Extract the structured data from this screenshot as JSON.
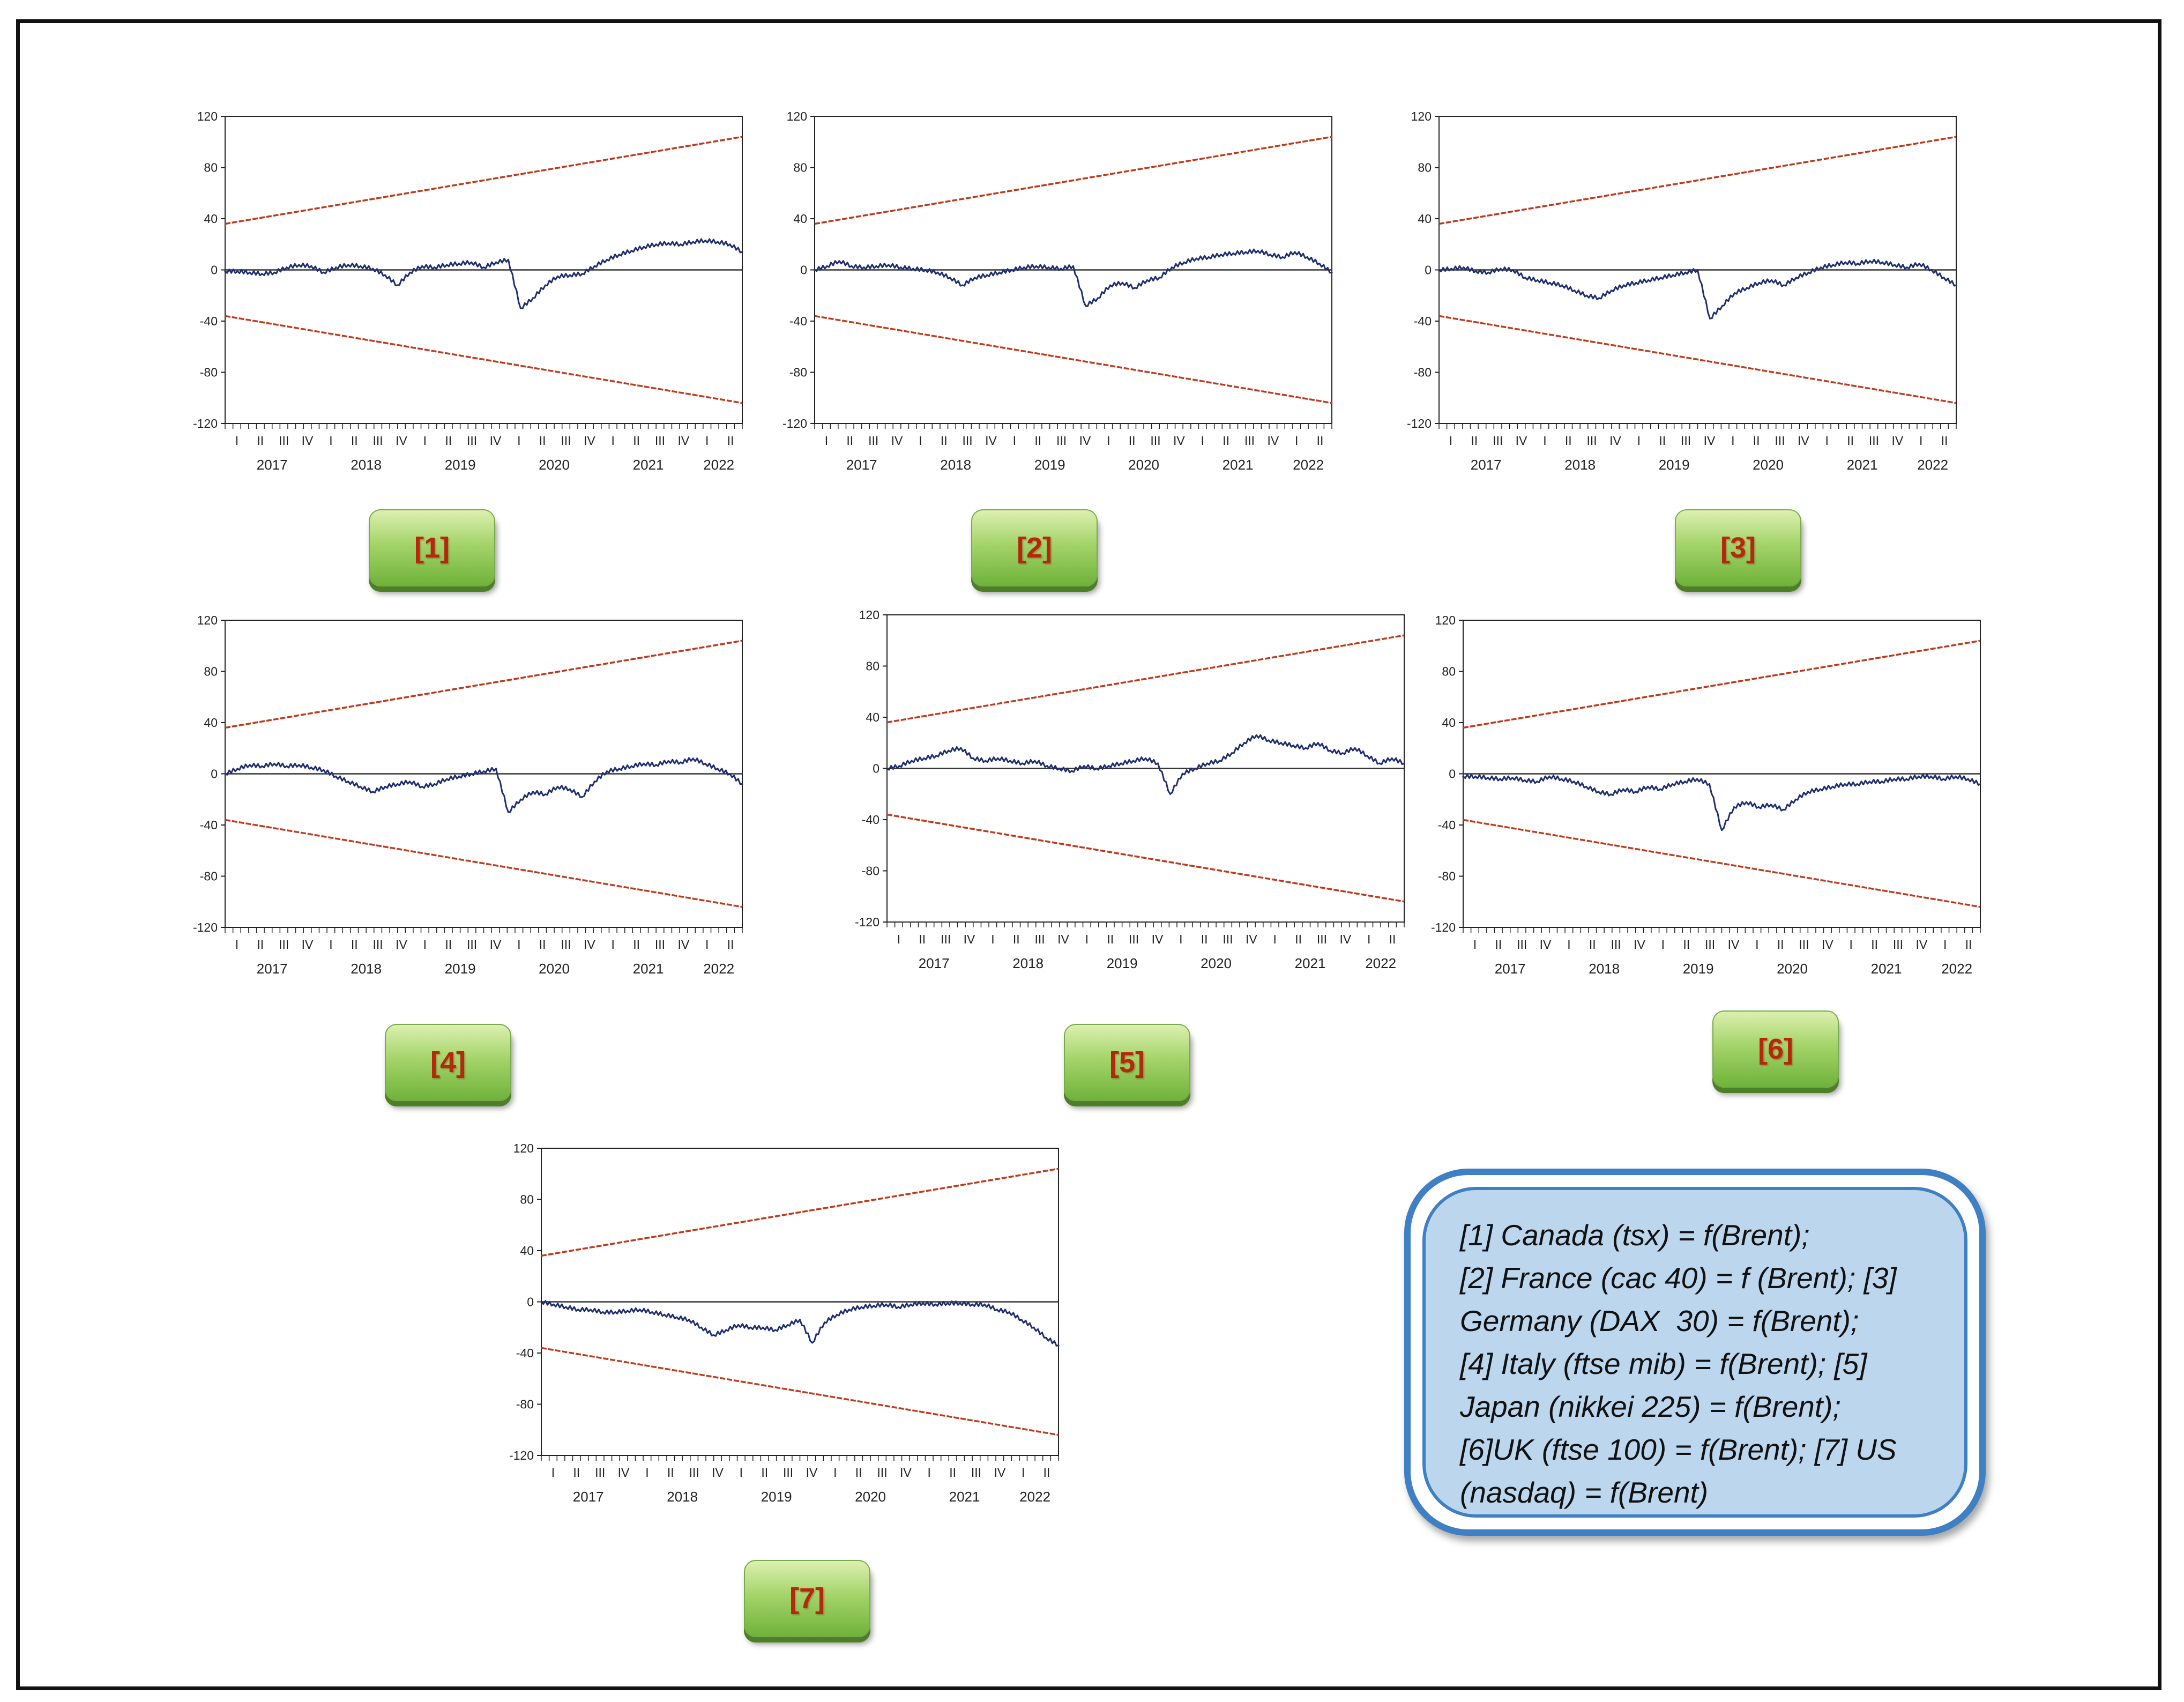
{
  "chart_data": [
    {
      "type": "line",
      "label": "[1]",
      "ylim": [
        -120,
        120
      ],
      "yticks": [
        "120",
        "80",
        "40",
        "0",
        "-40",
        "-80",
        "-120"
      ],
      "quarters": [
        "I",
        "II",
        "III",
        "IV"
      ],
      "years": [
        "2017",
        "2018",
        "2019",
        "2020",
        "2021",
        "2022"
      ],
      "x_range": [
        "2017-01",
        "2022-06"
      ],
      "series": [
        {
          "values": [
            -1,
            -1,
            -2,
            -3,
            -2,
            2,
            4,
            3,
            -2,
            2,
            4,
            3,
            1,
            -4,
            -12,
            -2,
            3,
            2,
            4,
            5,
            6,
            2,
            6,
            8,
            -30,
            -22,
            -12,
            -5,
            -4,
            -3,
            3,
            8,
            12,
            15,
            18,
            20,
            21,
            20,
            22,
            23,
            22,
            20,
            14
          ]
        },
        {
          "values": [
            36,
            104
          ]
        },
        {
          "values": [
            -36,
            -104
          ]
        }
      ]
    },
    {
      "type": "line",
      "label": "[2]",
      "ylim": [
        -120,
        120
      ],
      "yticks": [
        "120",
        "80",
        "40",
        "0",
        "-40",
        "-80",
        "-120"
      ],
      "quarters": [
        "I",
        "II",
        "III",
        "IV"
      ],
      "years": [
        "2017",
        "2018",
        "2019",
        "2020",
        "2021",
        "2022"
      ],
      "x_range": [
        "2017-01",
        "2022-06"
      ],
      "series": [
        {
          "values": [
            0,
            3,
            7,
            3,
            2,
            3,
            4,
            2,
            1,
            0,
            -2,
            -6,
            -12,
            -6,
            -4,
            -2,
            0,
            2,
            3,
            2,
            1,
            3,
            -28,
            -22,
            -12,
            -10,
            -14,
            -8,
            -6,
            2,
            6,
            9,
            10,
            12,
            13,
            14,
            15,
            12,
            10,
            14,
            10,
            5,
            -2
          ]
        },
        {
          "values": [
            36,
            104
          ]
        },
        {
          "values": [
            -36,
            -104
          ]
        }
      ]
    },
    {
      "type": "line",
      "label": "[3]",
      "ylim": [
        -120,
        120
      ],
      "yticks": [
        "120",
        "80",
        "40",
        "0",
        "-40",
        "-80",
        "-120"
      ],
      "quarters": [
        "I",
        "II",
        "III",
        "IV"
      ],
      "years": [
        "2017",
        "2018",
        "2019",
        "2020",
        "2021",
        "2022"
      ],
      "x_range": [
        "2017-01",
        "2022-06"
      ],
      "series": [
        {
          "values": [
            0,
            1,
            2,
            -1,
            -2,
            1,
            0,
            -6,
            -8,
            -10,
            -12,
            -16,
            -20,
            -22,
            -16,
            -12,
            -10,
            -8,
            -6,
            -4,
            -2,
            0,
            -38,
            -28,
            -18,
            -14,
            -10,
            -8,
            -12,
            -6,
            -2,
            2,
            4,
            6,
            5,
            7,
            6,
            4,
            2,
            5,
            0,
            -6,
            -12
          ]
        },
        {
          "values": [
            36,
            104
          ]
        },
        {
          "values": [
            -36,
            -104
          ]
        }
      ]
    },
    {
      "type": "line",
      "label": "[4]",
      "ylim": [
        -120,
        120
      ],
      "yticks": [
        "120",
        "80",
        "40",
        "0",
        "-40",
        "-80",
        "-120"
      ],
      "quarters": [
        "I",
        "II",
        "III",
        "IV"
      ],
      "years": [
        "2017",
        "2018",
        "2019",
        "2020",
        "2021",
        "2022"
      ],
      "x_range": [
        "2017-01",
        "2022-06"
      ],
      "series": [
        {
          "values": [
            0,
            4,
            7,
            6,
            8,
            6,
            7,
            5,
            3,
            -2,
            -6,
            -10,
            -14,
            -10,
            -8,
            -6,
            -10,
            -8,
            -4,
            -2,
            0,
            2,
            4,
            -30,
            -20,
            -14,
            -16,
            -10,
            -12,
            -18,
            -6,
            2,
            4,
            6,
            8,
            7,
            10,
            9,
            12,
            8,
            4,
            0,
            -8
          ]
        },
        {
          "values": [
            36,
            104
          ]
        },
        {
          "values": [
            -36,
            -104
          ]
        }
      ]
    },
    {
      "type": "line",
      "label": "[5]",
      "ylim": [
        -120,
        120
      ],
      "yticks": [
        "120",
        "80",
        "40",
        "0",
        "-40",
        "-80",
        "-120"
      ],
      "quarters": [
        "I",
        "II",
        "III",
        "IV"
      ],
      "years": [
        "2017",
        "2018",
        "2019",
        "2020",
        "2021",
        "2022"
      ],
      "x_range": [
        "2017-01",
        "2022-06"
      ],
      "series": [
        {
          "values": [
            0,
            2,
            6,
            8,
            10,
            14,
            16,
            8,
            6,
            8,
            6,
            4,
            6,
            2,
            0,
            -2,
            2,
            0,
            2,
            4,
            6,
            8,
            4,
            -20,
            -4,
            0,
            4,
            6,
            12,
            20,
            26,
            22,
            20,
            18,
            16,
            20,
            14,
            12,
            16,
            10,
            4,
            8,
            4
          ]
        },
        {
          "values": [
            36,
            104
          ]
        },
        {
          "values": [
            -36,
            -104
          ]
        }
      ]
    },
    {
      "type": "line",
      "label": "[6]",
      "ylim": [
        -120,
        120
      ],
      "yticks": [
        "120",
        "80",
        "40",
        "0",
        "-40",
        "-80",
        "-120"
      ],
      "quarters": [
        "I",
        "II",
        "III",
        "IV"
      ],
      "years": [
        "2017",
        "2018",
        "2019",
        "2020",
        "2021",
        "2022"
      ],
      "x_range": [
        "2017-01",
        "2022-06"
      ],
      "series": [
        {
          "values": [
            -2,
            -2,
            -3,
            -4,
            -3,
            -5,
            -6,
            -2,
            -4,
            -6,
            -10,
            -14,
            -16,
            -12,
            -14,
            -10,
            -12,
            -8,
            -6,
            -4,
            -8,
            -44,
            -26,
            -22,
            -26,
            -24,
            -28,
            -20,
            -14,
            -12,
            -10,
            -8,
            -8,
            -6,
            -6,
            -4,
            -4,
            -2,
            -2,
            -4,
            -2,
            -4,
            -8
          ]
        },
        {
          "values": [
            36,
            104
          ]
        },
        {
          "values": [
            -36,
            -104
          ]
        }
      ]
    },
    {
      "type": "line",
      "label": "[7]",
      "ylim": [
        -120,
        120
      ],
      "yticks": [
        "120",
        "80",
        "40",
        "0",
        "-40",
        "-80",
        "-120"
      ],
      "quarters": [
        "I",
        "II",
        "III",
        "IV"
      ],
      "years": [
        "2017",
        "2018",
        "2019",
        "2020",
        "2021",
        "2022"
      ],
      "x_range": [
        "2017-01",
        "2022-06"
      ],
      "series": [
        {
          "values": [
            0,
            -2,
            -4,
            -6,
            -6,
            -8,
            -8,
            -7,
            -6,
            -8,
            -10,
            -12,
            -14,
            -20,
            -26,
            -22,
            -18,
            -20,
            -20,
            -22,
            -18,
            -14,
            -32,
            -16,
            -10,
            -6,
            -4,
            -3,
            -2,
            -4,
            -2,
            -1,
            -2,
            -1,
            -1,
            -2,
            -2,
            -6,
            -8,
            -14,
            -20,
            -28,
            -34
          ]
        },
        {
          "values": [
            36,
            104
          ]
        },
        {
          "values": [
            -36,
            -104
          ]
        }
      ]
    }
  ],
  "labels": [
    "[1]",
    "[2]",
    "[3]",
    "[4]",
    "[5]",
    "[6]",
    "[7]"
  ],
  "legend": {
    "lines": [
      "[1] Canada (tsx) = f(Brent);",
      "[2] France (cac 40) = f (Brent); [3]",
      "Germany (DAX  30) = f(Brent);",
      "[4] Italy (ftse mib) = f(Brent); [5]",
      "Japan (nikkei 225) = f(Brent);",
      "[6]UK (ftse 100) = f(Brent); [7] US",
      "(nasdaq) = f(Brent)"
    ]
  },
  "colors": {
    "series": "#1f2e6e",
    "bounds": "#c03a1e",
    "zero_line": "#333333",
    "badge_text": "#b5280e",
    "legend_fill": "#bcd6ee",
    "legend_border": "#3f7fc4"
  }
}
